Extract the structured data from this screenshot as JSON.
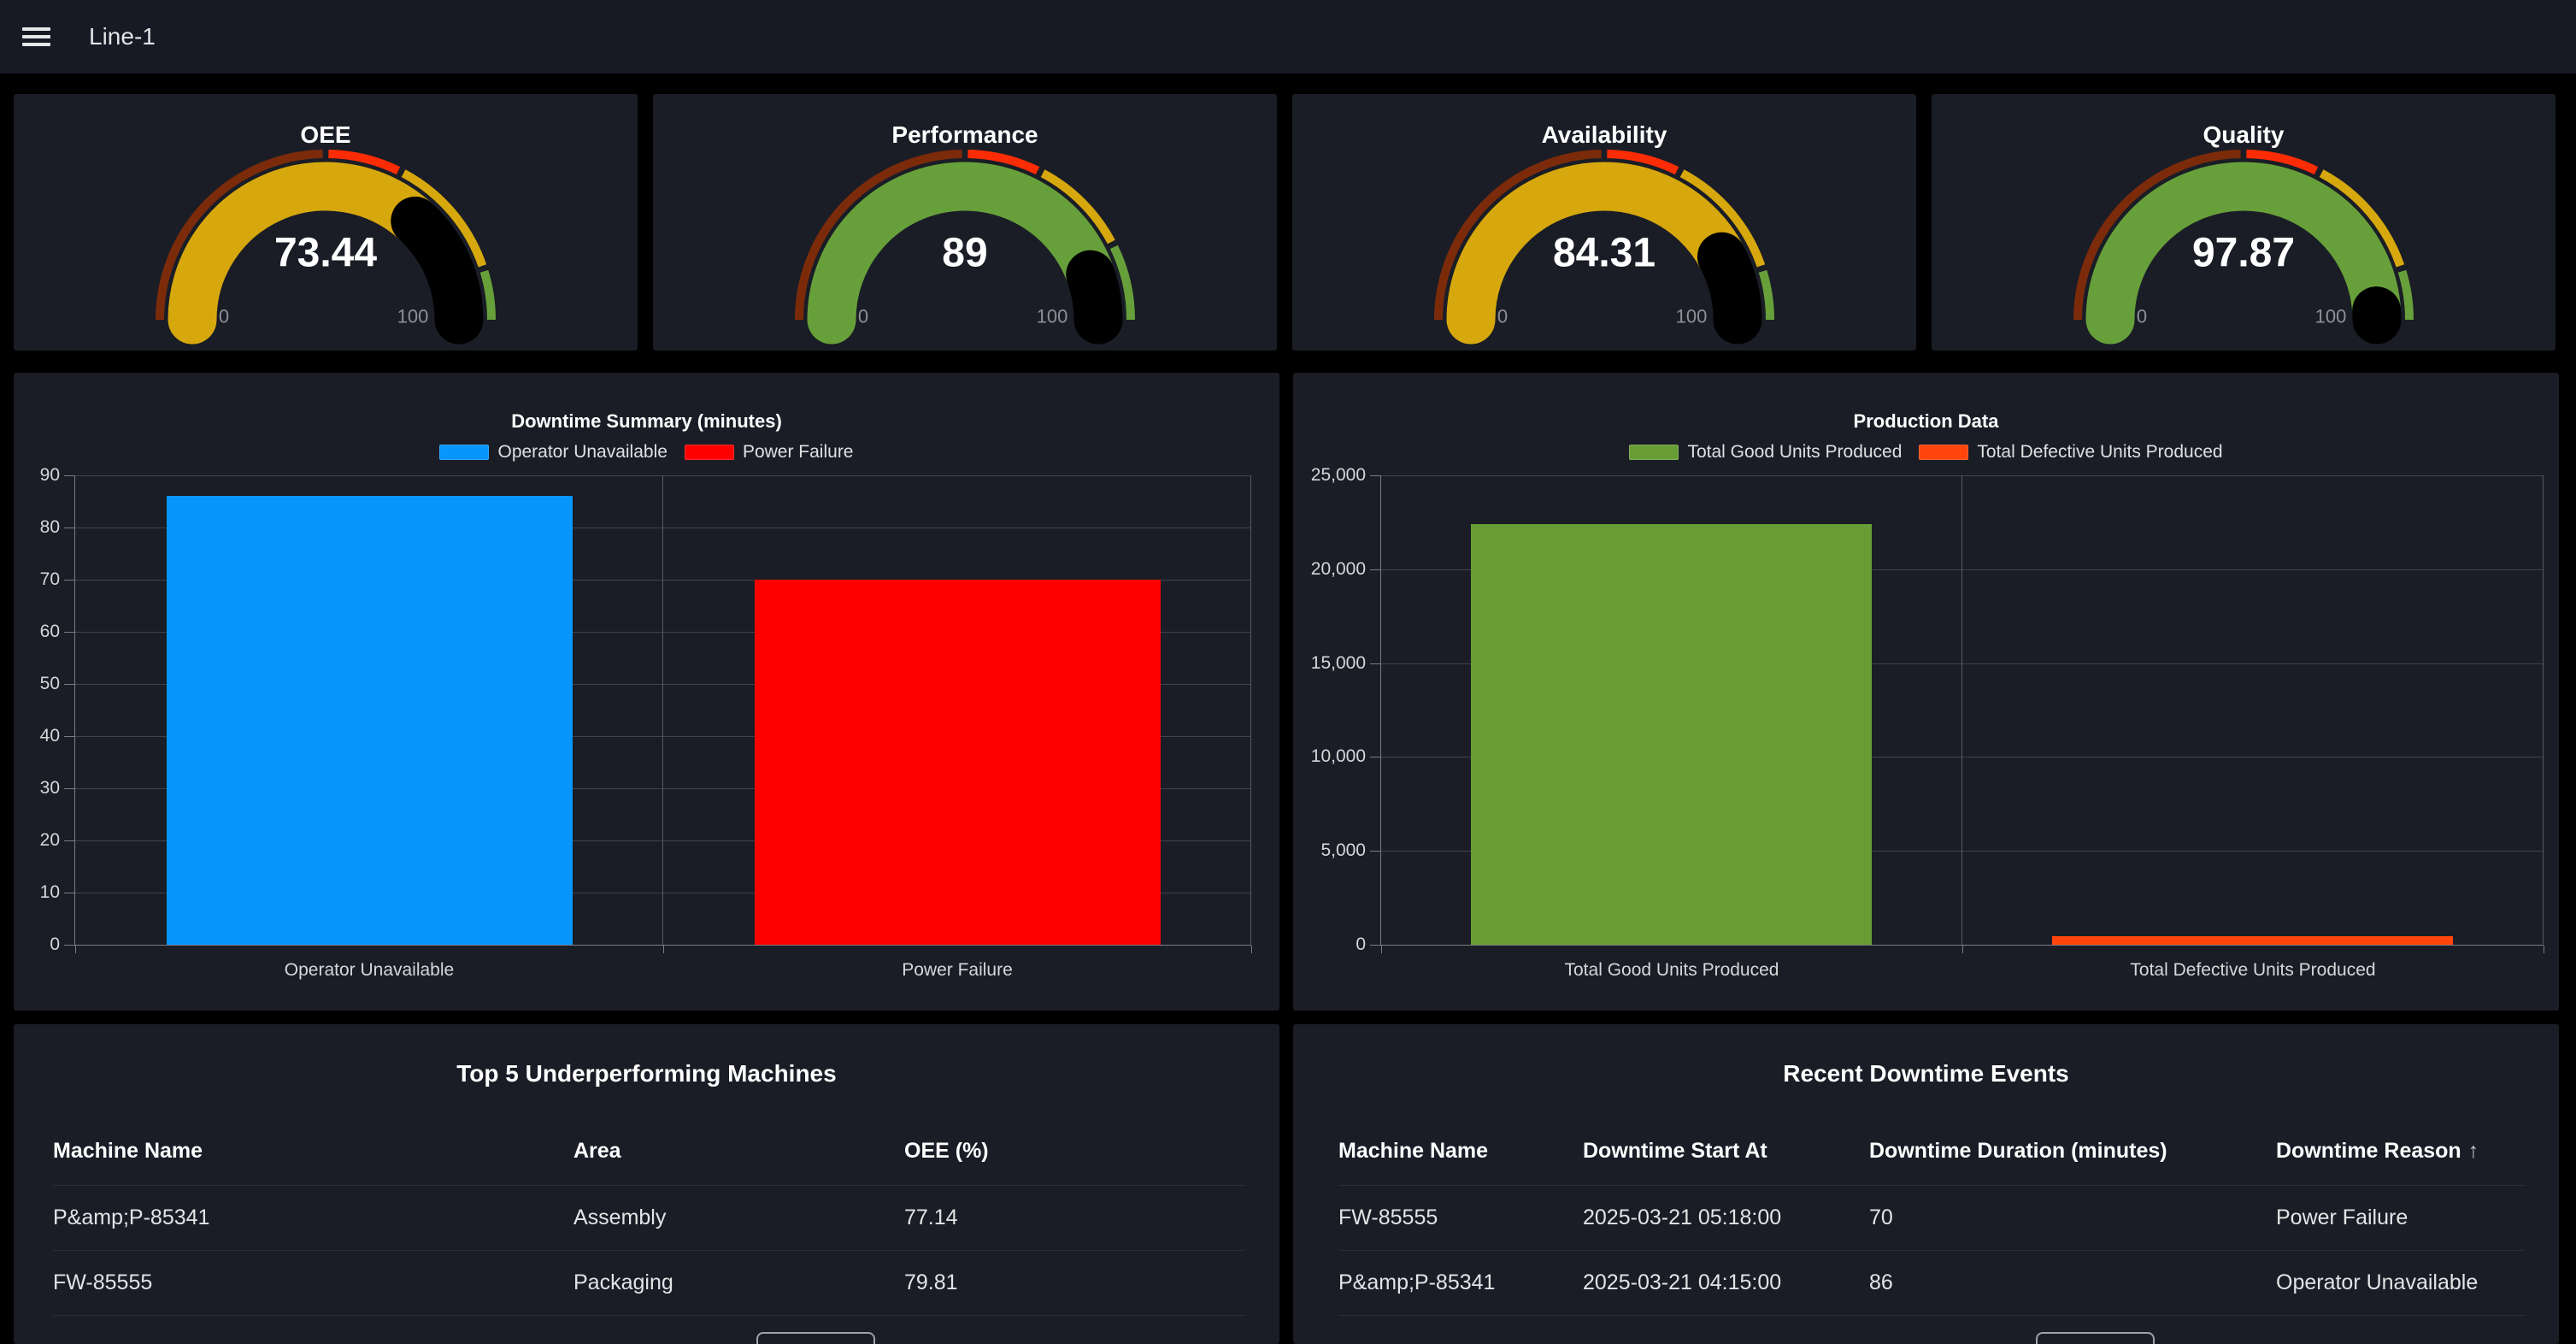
{
  "topbar": {
    "title": "Line-1"
  },
  "colors": {
    "page_bg": "#000000",
    "topbar_bg": "#171a24",
    "panel_bg": "#1a1d26",
    "gauge_dark_red": "#7c2b0a",
    "gauge_red": "#fe2c04",
    "gauge_gold": "#d7a80d",
    "gauge_green": "#67a03a",
    "bar_blue": "#0796fb",
    "bar_red": "#ff0000",
    "bar_green": "#689d36",
    "bar_orange": "#ff440c"
  },
  "chart_data": [
    {
      "type": "gauge",
      "title": "OEE",
      "value": 73.44,
      "display_value": "73.44",
      "min_label": "0",
      "max_label": "100",
      "bar_color": "#d7a80d",
      "thresholds": [
        {
          "up_to": 50,
          "color": "#7c2b0a"
        },
        {
          "up_to": 65,
          "color": "#fe2c04"
        },
        {
          "up_to": 90,
          "color": "#d7a80d"
        },
        {
          "up_to": 100,
          "color": "#67a03a"
        }
      ]
    },
    {
      "type": "gauge",
      "title": "Performance",
      "value": 89,
      "display_value": "89",
      "min_label": "0",
      "max_label": "100",
      "bar_color": "#67a03a",
      "thresholds": [
        {
          "up_to": 50,
          "color": "#7c2b0a"
        },
        {
          "up_to": 65,
          "color": "#fe2c04"
        },
        {
          "up_to": 85,
          "color": "#d7a80d"
        },
        {
          "up_to": 100,
          "color": "#67a03a"
        }
      ]
    },
    {
      "type": "gauge",
      "title": "Availability",
      "value": 84.31,
      "display_value": "84.31",
      "min_label": "0",
      "max_label": "100",
      "bar_color": "#d7a80d",
      "thresholds": [
        {
          "up_to": 50,
          "color": "#7c2b0a"
        },
        {
          "up_to": 65,
          "color": "#fe2c04"
        },
        {
          "up_to": 90,
          "color": "#d7a80d"
        },
        {
          "up_to": 100,
          "color": "#67a03a"
        }
      ]
    },
    {
      "type": "gauge",
      "title": "Quality",
      "value": 97.87,
      "display_value": "97.87",
      "min_label": "0",
      "max_label": "100",
      "bar_color": "#67a03a",
      "thresholds": [
        {
          "up_to": 50,
          "color": "#7c2b0a"
        },
        {
          "up_to": 65,
          "color": "#fe2c04"
        },
        {
          "up_to": 90,
          "color": "#d7a80d"
        },
        {
          "up_to": 100,
          "color": "#67a03a"
        }
      ]
    },
    {
      "type": "bar",
      "title": "Downtime Summary (minutes)",
      "categories": [
        "Operator Unavailable",
        "Power Failure"
      ],
      "values": [
        86,
        70
      ],
      "colors": [
        "#0796fb",
        "#ff0000"
      ],
      "ylim": [
        0,
        90
      ],
      "y_ticks": [
        "0",
        "10",
        "20",
        "30",
        "40",
        "50",
        "60",
        "70",
        "80",
        "90"
      ],
      "legend": [
        {
          "label": "Operator Unavailable",
          "color": "#0796fb"
        },
        {
          "label": "Power Failure",
          "color": "#ff0000"
        }
      ]
    },
    {
      "type": "bar",
      "title": "Production Data",
      "categories": [
        "Total Good Units Produced",
        "Total Defective Units Produced"
      ],
      "values": [
        22400,
        450
      ],
      "colors": [
        "#689d36",
        "#ff440c"
      ],
      "ylim": [
        0,
        25000
      ],
      "y_ticks": [
        "0",
        "5,000",
        "10,000",
        "15,000",
        "20,000",
        "25,000"
      ],
      "legend": [
        {
          "label": "Total Good Units Produced",
          "color": "#689d36"
        },
        {
          "label": "Total Defective Units Produced",
          "color": "#ff440c"
        }
      ]
    }
  ],
  "tables": [
    {
      "title": "Top 5 Underperforming Machines",
      "columns": [
        "Machine Name",
        "Area",
        "OEE (%)"
      ],
      "rows": [
        [
          "P&amp;P-85341",
          "Assembly",
          "77.14"
        ],
        [
          "FW-85555",
          "Packaging",
          "79.81"
        ]
      ]
    },
    {
      "title": "Recent Downtime Events",
      "columns": [
        "Machine Name",
        "Downtime Start At",
        "Downtime Duration (minutes)",
        "Downtime Reason"
      ],
      "sort": {
        "column": 3,
        "icon": "↑"
      },
      "rows": [
        [
          "FW-85555",
          "2025-03-21 05:18:00",
          "70",
          "Power Failure"
        ],
        [
          "P&amp;P-85341",
          "2025-03-21 04:15:00",
          "86",
          "Operator Unavailable"
        ]
      ]
    }
  ]
}
